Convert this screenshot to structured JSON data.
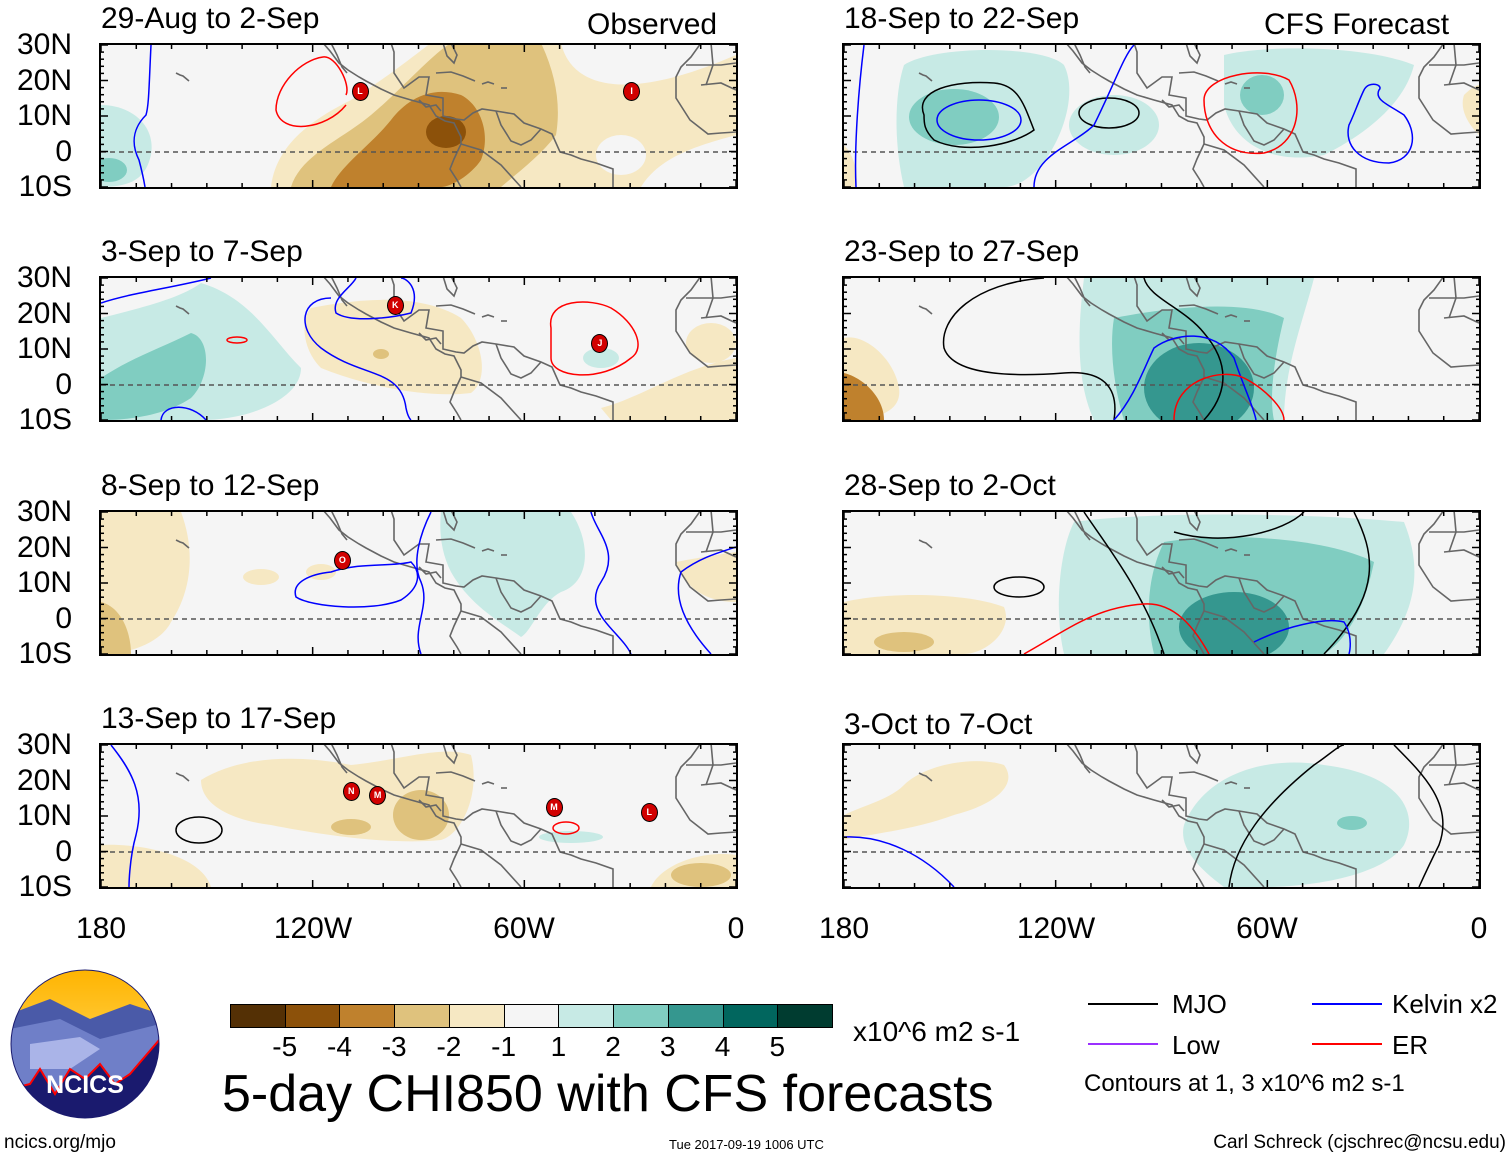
{
  "title": "5-day CHI850 with CFS forecasts",
  "observed_label": "Observed",
  "forecast_label": "CFS Forecast",
  "lat_labels": [
    "30N",
    "20N",
    "10N",
    "0",
    "10S"
  ],
  "lon_labels": [
    "180",
    "120W",
    "60W",
    "0"
  ],
  "panels": [
    {
      "date_range": "29-Aug to 2-Sep",
      "type": "observed",
      "storms": [
        {
          "letter": "L",
          "lon": -107,
          "lat": 17
        },
        {
          "letter": "I",
          "lon": -30,
          "lat": 17
        }
      ]
    },
    {
      "date_range": "3-Sep to 7-Sep",
      "type": "observed",
      "storms": [
        {
          "letter": "K",
          "lon": -97,
          "lat": 22.4
        },
        {
          "letter": "J",
          "lon": -39,
          "lat": 11.7
        }
      ]
    },
    {
      "date_range": "8-Sep to 12-Sep",
      "type": "observed",
      "storms": [
        {
          "letter": "O",
          "lon": -112,
          "lat": 16.5
        }
      ]
    },
    {
      "date_range": "13-Sep to 17-Sep",
      "type": "observed",
      "storms": [
        {
          "letter": "N",
          "lon": -109.5,
          "lat": 17
        },
        {
          "letter": "M",
          "lon": -102,
          "lat": 16
        },
        {
          "letter": "M",
          "lon": -52,
          "lat": 12.5
        },
        {
          "letter": "L",
          "lon": -25,
          "lat": 11
        }
      ]
    },
    {
      "date_range": "18-Sep to 22-Sep",
      "type": "forecast",
      "storms": []
    },
    {
      "date_range": "23-Sep to 27-Sep",
      "type": "forecast",
      "storms": []
    },
    {
      "date_range": "28-Sep to 2-Oct",
      "type": "forecast",
      "storms": []
    },
    {
      "date_range": "3-Oct to 7-Oct",
      "type": "forecast",
      "storms": []
    }
  ],
  "colorbar": {
    "colors": [
      "#543005",
      "#8c510a",
      "#bf812d",
      "#dfc27d",
      "#f6e8c3",
      "#f5f5f5",
      "#c7eae5",
      "#80cdc1",
      "#35978f",
      "#01665e",
      "#003c30"
    ],
    "labels": [
      "-5",
      "-4",
      "-3",
      "-2",
      "-1",
      "1",
      "2",
      "3",
      "4",
      "5"
    ],
    "units": "x10^6 m2 s-1"
  },
  "legend": {
    "items": [
      {
        "label": "MJO",
        "color": "#000000"
      },
      {
        "label": "Kelvin x2",
        "color": "#0000ff"
      },
      {
        "label": "Low",
        "color": "#9b30ff"
      },
      {
        "label": "ER",
        "color": "#ff0000"
      }
    ],
    "contours_note": "Contours at 1, 3 x10^6 m2 s-1"
  },
  "logo_text": "NCICS",
  "footer": {
    "url": "ncics.org/mjo",
    "timestamp": "Tue 2017-09-19 1006 UTC",
    "credit": "Carl Schreck (cjschrec@ncsu.edu)"
  }
}
